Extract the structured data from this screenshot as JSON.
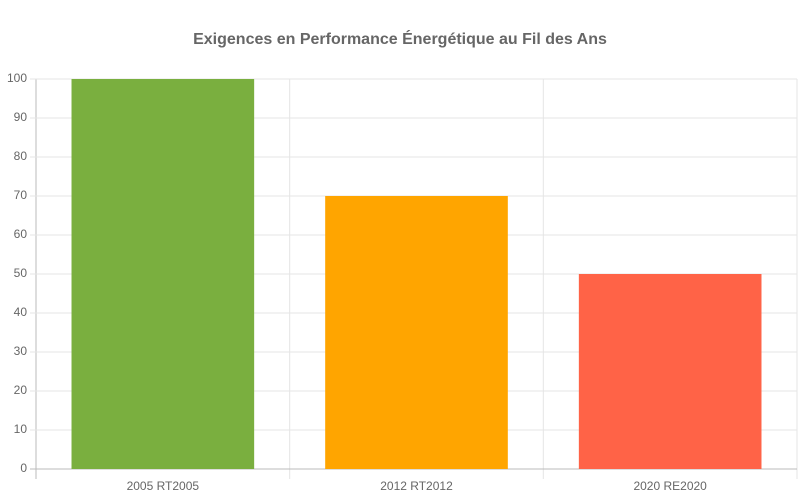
{
  "chart_data": {
    "type": "bar",
    "title": "Exigences en Performance Énergétique au Fil des Ans",
    "categories": [
      "2005 RT2005",
      "2012 RT2012",
      "2020 RE2020"
    ],
    "values": [
      100,
      70,
      50
    ],
    "colors": [
      "#7aaf3f",
      "#ffa500",
      "#ff6347"
    ],
    "ylim": [
      0,
      100
    ],
    "yticks": [
      0,
      10,
      20,
      30,
      40,
      50,
      60,
      70,
      80,
      90,
      100
    ],
    "grid": true
  }
}
